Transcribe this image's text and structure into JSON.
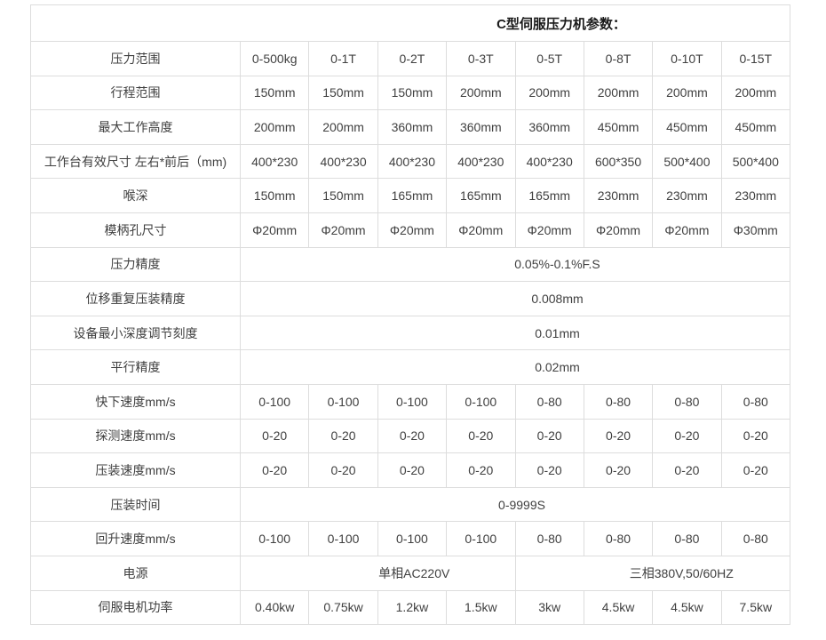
{
  "title": "C型伺服压力机参数：",
  "colors": {
    "background": "#ffffff",
    "border": "#dddddd",
    "text": "#404040",
    "title_text": "#1a1a1a"
  },
  "table": {
    "rows": [
      {
        "label": "压力范围",
        "cells": [
          {
            "text": "0-500kg",
            "span": 1
          },
          {
            "text": "0-1T",
            "span": 1
          },
          {
            "text": "0-2T",
            "span": 1
          },
          {
            "text": "0-3T",
            "span": 1
          },
          {
            "text": "0-5T",
            "span": 1
          },
          {
            "text": "0-8T",
            "span": 1
          },
          {
            "text": "0-10T",
            "span": 1
          },
          {
            "text": "0-15T",
            "span": 1
          }
        ]
      },
      {
        "label": "行程范围",
        "cells": [
          {
            "text": "150mm",
            "span": 1
          },
          {
            "text": "150mm",
            "span": 1
          },
          {
            "text": "150mm",
            "span": 1
          },
          {
            "text": "200mm",
            "span": 1
          },
          {
            "text": "200mm",
            "span": 1
          },
          {
            "text": "200mm",
            "span": 1
          },
          {
            "text": "200mm",
            "span": 1
          },
          {
            "text": "200mm",
            "span": 1
          }
        ]
      },
      {
        "label": "最大工作高度",
        "cells": [
          {
            "text": "200mm",
            "span": 1
          },
          {
            "text": "200mm",
            "span": 1
          },
          {
            "text": "360mm",
            "span": 1
          },
          {
            "text": "360mm",
            "span": 1
          },
          {
            "text": "360mm",
            "span": 1
          },
          {
            "text": "450mm",
            "span": 1
          },
          {
            "text": "450mm",
            "span": 1
          },
          {
            "text": "450mm",
            "span": 1
          }
        ]
      },
      {
        "label": "工作台有效尺寸 左右*前后（mm)",
        "cells": [
          {
            "text": "400*230",
            "span": 1
          },
          {
            "text": "400*230",
            "span": 1
          },
          {
            "text": "400*230",
            "span": 1
          },
          {
            "text": "400*230",
            "span": 1
          },
          {
            "text": "400*230",
            "span": 1
          },
          {
            "text": "600*350",
            "span": 1
          },
          {
            "text": "500*400",
            "span": 1
          },
          {
            "text": "500*400",
            "span": 1
          }
        ]
      },
      {
        "label": "喉深",
        "cells": [
          {
            "text": "150mm",
            "span": 1
          },
          {
            "text": "150mm",
            "span": 1
          },
          {
            "text": "165mm",
            "span": 1
          },
          {
            "text": "165mm",
            "span": 1
          },
          {
            "text": "165mm",
            "span": 1
          },
          {
            "text": "230mm",
            "span": 1
          },
          {
            "text": "230mm",
            "span": 1
          },
          {
            "text": "230mm",
            "span": 1
          }
        ]
      },
      {
        "label": "模柄孔尺寸",
        "cells": [
          {
            "text": "Φ20mm",
            "span": 1
          },
          {
            "text": "Φ20mm",
            "span": 1
          },
          {
            "text": "Φ20mm",
            "span": 1
          },
          {
            "text": "Φ20mm",
            "span": 1
          },
          {
            "text": "Φ20mm",
            "span": 1
          },
          {
            "text": "Φ20mm",
            "span": 1
          },
          {
            "text": "Φ20mm",
            "span": 1
          },
          {
            "text": "Φ30mm",
            "span": 1
          }
        ]
      },
      {
        "label": "压力精度",
        "cells": [
          {
            "text": "0.05%-0.1%F.S",
            "span": 8
          }
        ]
      },
      {
        "label": "位移重复压装精度",
        "cells": [
          {
            "text": "0.008mm",
            "span": 8
          }
        ]
      },
      {
        "label": "设备最小深度调节刻度",
        "cells": [
          {
            "text": "0.01mm",
            "span": 8
          }
        ]
      },
      {
        "label": "平行精度",
        "cells": [
          {
            "text": "0.02mm",
            "span": 8
          }
        ]
      },
      {
        "label": "快下速度mm/s",
        "cells": [
          {
            "text": "0-100",
            "span": 1
          },
          {
            "text": "0-100",
            "span": 1
          },
          {
            "text": "0-100",
            "span": 1
          },
          {
            "text": "0-100",
            "span": 1
          },
          {
            "text": "0-80",
            "span": 1
          },
          {
            "text": "0-80",
            "span": 1
          },
          {
            "text": "0-80",
            "span": 1
          },
          {
            "text": "0-80",
            "span": 1
          }
        ]
      },
      {
        "label": "探测速度mm/s",
        "cells": [
          {
            "text": "0-20",
            "span": 1
          },
          {
            "text": "0-20",
            "span": 1
          },
          {
            "text": "0-20",
            "span": 1
          },
          {
            "text": "0-20",
            "span": 1
          },
          {
            "text": "0-20",
            "span": 1
          },
          {
            "text": "0-20",
            "span": 1
          },
          {
            "text": "0-20",
            "span": 1
          },
          {
            "text": "0-20",
            "span": 1
          }
        ]
      },
      {
        "label": "压装速度mm/s",
        "cells": [
          {
            "text": "0-20",
            "span": 1
          },
          {
            "text": "0-20",
            "span": 1
          },
          {
            "text": "0-20",
            "span": 1
          },
          {
            "text": "0-20",
            "span": 1
          },
          {
            "text": "0-20",
            "span": 1
          },
          {
            "text": "0-20",
            "span": 1
          },
          {
            "text": "0-20",
            "span": 1
          },
          {
            "text": "0-20",
            "span": 1
          }
        ]
      },
      {
        "label": "压装时间",
        "cells": [
          {
            "text": "0-9999S",
            "span": 8
          }
        ]
      },
      {
        "label": "回升速度mm/s",
        "cells": [
          {
            "text": "0-100",
            "span": 1
          },
          {
            "text": "0-100",
            "span": 1
          },
          {
            "text": "0-100",
            "span": 1
          },
          {
            "text": "0-100",
            "span": 1
          },
          {
            "text": "0-80",
            "span": 1
          },
          {
            "text": "0-80",
            "span": 1
          },
          {
            "text": "0-80",
            "span": 1
          },
          {
            "text": "0-80",
            "span": 1
          }
        ]
      },
      {
        "label": "电源",
        "cells": [
          {
            "text": "单相AC220V",
            "span": 4
          },
          {
            "text": "三相380V,50/60HZ",
            "span": 4
          }
        ]
      },
      {
        "label": "伺服电机功率",
        "cells": [
          {
            "text": "0.40kw",
            "span": 1
          },
          {
            "text": "0.75kw",
            "span": 1
          },
          {
            "text": "1.2kw",
            "span": 1
          },
          {
            "text": "1.5kw",
            "span": 1
          },
          {
            "text": "3kw",
            "span": 1
          },
          {
            "text": "4.5kw",
            "span": 1
          },
          {
            "text": "4.5kw",
            "span": 1
          },
          {
            "text": "7.5kw",
            "span": 1
          }
        ]
      }
    ]
  }
}
